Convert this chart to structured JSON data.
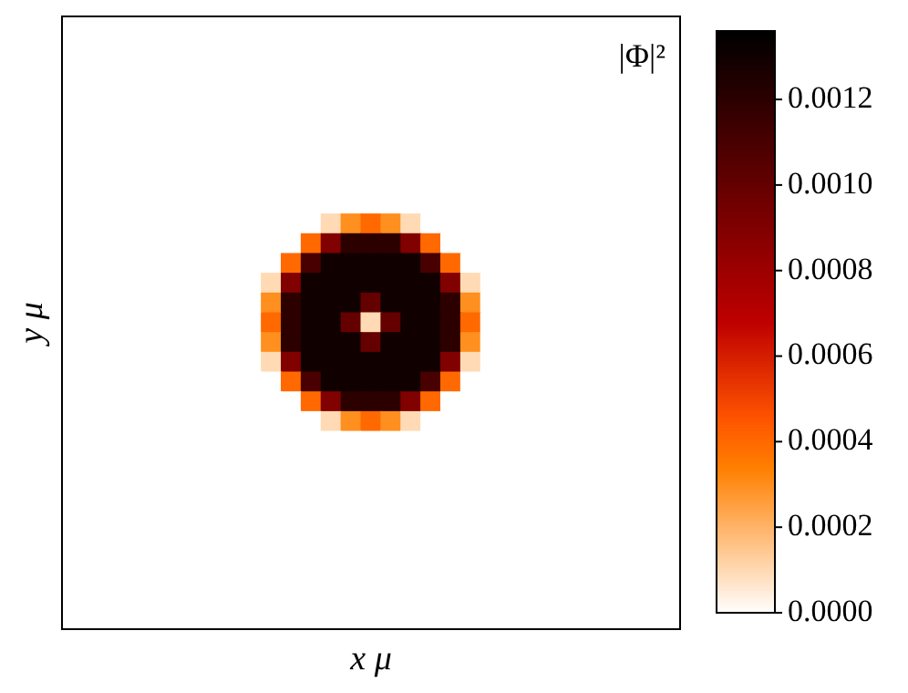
{
  "chart_data": {
    "type": "heatmap",
    "xlabel": "x μ",
    "ylabel": "y μ",
    "annotations": [
      "|Φ|²"
    ],
    "tick_labels": false,
    "categories": [
      null,
      null,
      null,
      null,
      null,
      null,
      null,
      null,
      null,
      null,
      null,
      null,
      null,
      null,
      null,
      null,
      null,
      null,
      null,
      null,
      null,
      null,
      null,
      null,
      null,
      null,
      null,
      null,
      null,
      null,
      null
    ],
    "y_categories": [
      null,
      null,
      null,
      null,
      null,
      null,
      null,
      null,
      null,
      null,
      null,
      null,
      null,
      null,
      null,
      null,
      null,
      null,
      null,
      null,
      null,
      null,
      null,
      null,
      null,
      null,
      null,
      null,
      null,
      null,
      null
    ],
    "clim": [
      0,
      0.00136
    ],
    "cticks": [
      {
        "value": 0,
        "label": "0.0000"
      },
      {
        "value": 0.0002,
        "label": "0.0002"
      },
      {
        "value": 0.0004,
        "label": "0.0004"
      },
      {
        "value": 0.0006,
        "label": "0.0006"
      },
      {
        "value": 0.0008,
        "label": "0.0008"
      },
      {
        "value": 0.001,
        "label": "0.0010"
      },
      {
        "value": 0.0012,
        "label": "0.0012"
      }
    ],
    "cells": [
      [
        0,
        0,
        0,
        0,
        0,
        0,
        0,
        0,
        0,
        0,
        0,
        0,
        0,
        0,
        0,
        0,
        0,
        0,
        0,
        0,
        0,
        0,
        0,
        0,
        0,
        0,
        0,
        0,
        0,
        0,
        0
      ],
      [
        0,
        0,
        0,
        0,
        0,
        0,
        0,
        0,
        0,
        0,
        0,
        0,
        0,
        0,
        0,
        0,
        0,
        0,
        0,
        0,
        0,
        0,
        0,
        0,
        0,
        0,
        0,
        0,
        0,
        0,
        0
      ],
      [
        0,
        0,
        0,
        0,
        0,
        0,
        0,
        0,
        0,
        0,
        0,
        0,
        0,
        0,
        0,
        0,
        0,
        0,
        0,
        0,
        0,
        0,
        0,
        0,
        0,
        0,
        0,
        0,
        0,
        0,
        0
      ],
      [
        0,
        0,
        0,
        0,
        0,
        0,
        0,
        0,
        0,
        0,
        0,
        0,
        0,
        0,
        0,
        0,
        0,
        0,
        0,
        0,
        0,
        0,
        0,
        0,
        0,
        0,
        0,
        0,
        0,
        0,
        0
      ],
      [
        0,
        0,
        0,
        0,
        0,
        0,
        0,
        0,
        0,
        0,
        0,
        0,
        0,
        0,
        0,
        0,
        0,
        0,
        0,
        0,
        0,
        0,
        0,
        0,
        0,
        0,
        0,
        0,
        0,
        0,
        0
      ],
      [
        0,
        0,
        0,
        0,
        0,
        0,
        0,
        0,
        0,
        0,
        0,
        0,
        0,
        0,
        0,
        0,
        0,
        0,
        0,
        0,
        0,
        0,
        0,
        0,
        0,
        0,
        0,
        0,
        0,
        0,
        0
      ],
      [
        0,
        0,
        0,
        0,
        0,
        0,
        0,
        0,
        0,
        0,
        0,
        0,
        0,
        0,
        0,
        0,
        0,
        0,
        0,
        0,
        0,
        0,
        0,
        0,
        0,
        0,
        0,
        0,
        0,
        0,
        0
      ],
      [
        0,
        0,
        0,
        0,
        0,
        0,
        0,
        0,
        0,
        0,
        0,
        0,
        0,
        0,
        0,
        0,
        0,
        0,
        0,
        0,
        0,
        0,
        0,
        0,
        0,
        0,
        0,
        0,
        0,
        0,
        0
      ],
      [
        0,
        0,
        0,
        0,
        0,
        0,
        0,
        0,
        0,
        0,
        0,
        0,
        0,
        0,
        0,
        0,
        0,
        0,
        0,
        0,
        0,
        0,
        0,
        0,
        0,
        0,
        0,
        0,
        0,
        0,
        0
      ],
      [
        0,
        0,
        0,
        0,
        0,
        0,
        0,
        0,
        0,
        0,
        0,
        0,
        0,
        0,
        0,
        0,
        0,
        0,
        0,
        0,
        0,
        0,
        0,
        0,
        0,
        0,
        0,
        0,
        0,
        0,
        0
      ],
      [
        0,
        0,
        0,
        0,
        0,
        0,
        0,
        0,
        0,
        0,
        0,
        0,
        0,
        0.0001,
        0.0003,
        0.0004,
        0.0003,
        0.0001,
        0,
        0,
        0,
        0,
        0,
        0,
        0,
        0,
        0,
        0,
        0,
        0,
        0
      ],
      [
        0,
        0,
        0,
        0,
        0,
        0,
        0,
        0,
        0,
        0,
        0,
        0,
        0.0004,
        0.0009,
        0.0012,
        0.0012,
        0.0012,
        0.0009,
        0.0004,
        0,
        0,
        0,
        0,
        0,
        0,
        0,
        0,
        0,
        0,
        0,
        0
      ],
      [
        0,
        0,
        0,
        0,
        0,
        0,
        0,
        0,
        0,
        0,
        0,
        0.0004,
        0.0011,
        0.0013,
        0.0013,
        0.0013,
        0.0013,
        0.0013,
        0.0011,
        0.0004,
        0,
        0,
        0,
        0,
        0,
        0,
        0,
        0,
        0,
        0,
        0
      ],
      [
        0,
        0,
        0,
        0,
        0,
        0,
        0,
        0,
        0,
        0,
        0.0001,
        0.0009,
        0.0013,
        0.0013,
        0.0013,
        0.0013,
        0.0013,
        0.0013,
        0.0013,
        0.0009,
        0.0001,
        0,
        0,
        0,
        0,
        0,
        0,
        0,
        0,
        0,
        0
      ],
      [
        0,
        0,
        0,
        0,
        0,
        0,
        0,
        0,
        0,
        0,
        0.0003,
        0.0012,
        0.0013,
        0.0013,
        0.0013,
        0.001,
        0.0013,
        0.0013,
        0.0013,
        0.0012,
        0.0003,
        0,
        0,
        0,
        0,
        0,
        0,
        0,
        0,
        0,
        0
      ],
      [
        0,
        0,
        0,
        0,
        0,
        0,
        0,
        0,
        0,
        0,
        0.0004,
        0.0012,
        0.0013,
        0.0013,
        0.001,
        0.0001,
        0.001,
        0.0013,
        0.0013,
        0.0012,
        0.0004,
        0,
        0,
        0,
        0,
        0,
        0,
        0,
        0,
        0,
        0
      ],
      [
        0,
        0,
        0,
        0,
        0,
        0,
        0,
        0,
        0,
        0,
        0.0003,
        0.0012,
        0.0013,
        0.0013,
        0.0013,
        0.001,
        0.0013,
        0.0013,
        0.0013,
        0.0012,
        0.0003,
        0,
        0,
        0,
        0,
        0,
        0,
        0,
        0,
        0,
        0
      ],
      [
        0,
        0,
        0,
        0,
        0,
        0,
        0,
        0,
        0,
        0,
        0.0001,
        0.0009,
        0.0013,
        0.0013,
        0.0013,
        0.0013,
        0.0013,
        0.0013,
        0.0013,
        0.0009,
        0.0001,
        0,
        0,
        0,
        0,
        0,
        0,
        0,
        0,
        0,
        0
      ],
      [
        0,
        0,
        0,
        0,
        0,
        0,
        0,
        0,
        0,
        0,
        0,
        0.0004,
        0.0011,
        0.0013,
        0.0013,
        0.0013,
        0.0013,
        0.0013,
        0.0011,
        0.0004,
        0,
        0,
        0,
        0,
        0,
        0,
        0,
        0,
        0,
        0,
        0
      ],
      [
        0,
        0,
        0,
        0,
        0,
        0,
        0,
        0,
        0,
        0,
        0,
        0,
        0.0004,
        0.0009,
        0.0012,
        0.0012,
        0.0012,
        0.0009,
        0.0004,
        0,
        0,
        0,
        0,
        0,
        0,
        0,
        0,
        0,
        0,
        0,
        0
      ],
      [
        0,
        0,
        0,
        0,
        0,
        0,
        0,
        0,
        0,
        0,
        0,
        0,
        0,
        0.0001,
        0.0003,
        0.0004,
        0.0003,
        0.0001,
        0,
        0,
        0,
        0,
        0,
        0,
        0,
        0,
        0,
        0,
        0,
        0,
        0
      ],
      [
        0,
        0,
        0,
        0,
        0,
        0,
        0,
        0,
        0,
        0,
        0,
        0,
        0,
        0,
        0,
        0,
        0,
        0,
        0,
        0,
        0,
        0,
        0,
        0,
        0,
        0,
        0,
        0,
        0,
        0,
        0
      ],
      [
        0,
        0,
        0,
        0,
        0,
        0,
        0,
        0,
        0,
        0,
        0,
        0,
        0,
        0,
        0,
        0,
        0,
        0,
        0,
        0,
        0,
        0,
        0,
        0,
        0,
        0,
        0,
        0,
        0,
        0,
        0
      ],
      [
        0,
        0,
        0,
        0,
        0,
        0,
        0,
        0,
        0,
        0,
        0,
        0,
        0,
        0,
        0,
        0,
        0,
        0,
        0,
        0,
        0,
        0,
        0,
        0,
        0,
        0,
        0,
        0,
        0,
        0,
        0
      ],
      [
        0,
        0,
        0,
        0,
        0,
        0,
        0,
        0,
        0,
        0,
        0,
        0,
        0,
        0,
        0,
        0,
        0,
        0,
        0,
        0,
        0,
        0,
        0,
        0,
        0,
        0,
        0,
        0,
        0,
        0,
        0
      ],
      [
        0,
        0,
        0,
        0,
        0,
        0,
        0,
        0,
        0,
        0,
        0,
        0,
        0,
        0,
        0,
        0,
        0,
        0,
        0,
        0,
        0,
        0,
        0,
        0,
        0,
        0,
        0,
        0,
        0,
        0,
        0
      ],
      [
        0,
        0,
        0,
        0,
        0,
        0,
        0,
        0,
        0,
        0,
        0,
        0,
        0,
        0,
        0,
        0,
        0,
        0,
        0,
        0,
        0,
        0,
        0,
        0,
        0,
        0,
        0,
        0,
        0,
        0,
        0
      ],
      [
        0,
        0,
        0,
        0,
        0,
        0,
        0,
        0,
        0,
        0,
        0,
        0,
        0,
        0,
        0,
        0,
        0,
        0,
        0,
        0,
        0,
        0,
        0,
        0,
        0,
        0,
        0,
        0,
        0,
        0,
        0
      ],
      [
        0,
        0,
        0,
        0,
        0,
        0,
        0,
        0,
        0,
        0,
        0,
        0,
        0,
        0,
        0,
        0,
        0,
        0,
        0,
        0,
        0,
        0,
        0,
        0,
        0,
        0,
        0,
        0,
        0,
        0,
        0
      ],
      [
        0,
        0,
        0,
        0,
        0,
        0,
        0,
        0,
        0,
        0,
        0,
        0,
        0,
        0,
        0,
        0,
        0,
        0,
        0,
        0,
        0,
        0,
        0,
        0,
        0,
        0,
        0,
        0,
        0,
        0,
        0
      ],
      [
        0,
        0,
        0,
        0,
        0,
        0,
        0,
        0,
        0,
        0,
        0,
        0,
        0,
        0,
        0,
        0,
        0,
        0,
        0,
        0,
        0,
        0,
        0,
        0,
        0,
        0,
        0,
        0,
        0,
        0,
        0
      ]
    ]
  }
}
